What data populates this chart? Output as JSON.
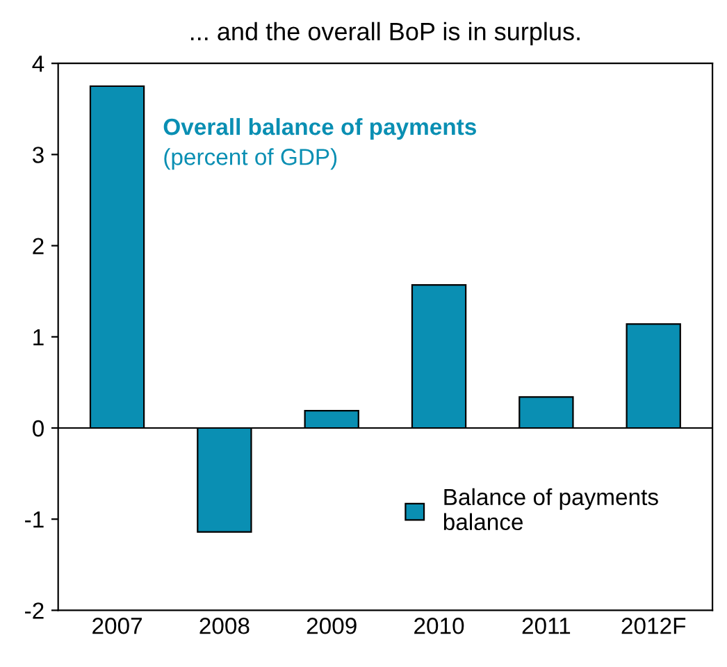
{
  "chart_data": {
    "type": "bar",
    "title": "... and the overall BoP is in surplus.",
    "categories": [
      "2007",
      "2008",
      "2009",
      "2010",
      "2011",
      "2012F"
    ],
    "series": [
      {
        "name": "Balance of payments\nbalance",
        "color": "#0a8fb3",
        "values": [
          3.75,
          -1.14,
          0.19,
          1.57,
          0.34,
          1.14
        ]
      }
    ],
    "annotations": [
      "Overall balance of payments",
      "(percent of GDP)"
    ],
    "ylim": [
      -2,
      4
    ],
    "yticks": [
      -2,
      -1,
      0,
      1,
      2,
      3,
      4
    ],
    "legend": "bottom right"
  }
}
